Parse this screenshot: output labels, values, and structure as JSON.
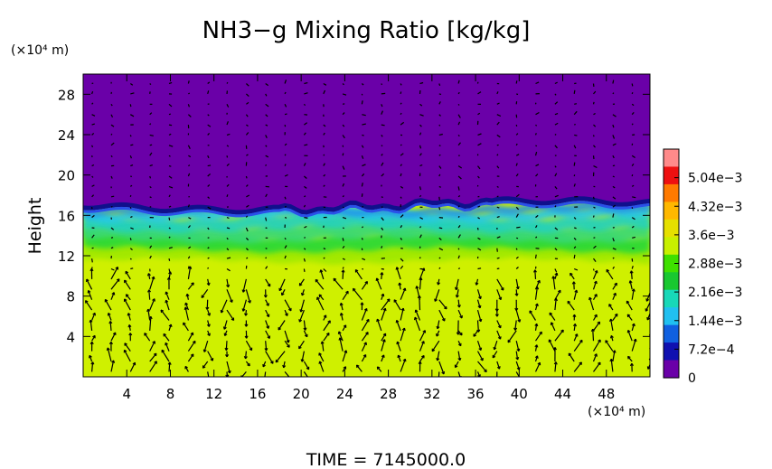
{
  "chart_data": {
    "type": "heatmap",
    "title": "NH3−g Mixing Ratio [kg/kg]",
    "xlabel": "",
    "xunit": "(×10⁴ m)",
    "ylabel": "Height",
    "yunit": "(×10⁴ m)",
    "xlim": [
      0,
      52
    ],
    "ylim": [
      0,
      30
    ],
    "x_ticks": [
      "4",
      "8",
      "12",
      "16",
      "20",
      "24",
      "28",
      "32",
      "36",
      "40",
      "44",
      "48"
    ],
    "x_tick_values": [
      4,
      8,
      12,
      16,
      20,
      24,
      28,
      32,
      36,
      40,
      44,
      48
    ],
    "y_ticks": [
      "4",
      "8",
      "12",
      "16",
      "20",
      "24",
      "28"
    ],
    "y_tick_values": [
      4,
      8,
      12,
      16,
      20,
      24,
      28
    ],
    "colorbar": {
      "labels": [
        "5.04e−3",
        "4.32e−3",
        "3.6e−3",
        "2.88e−3",
        "2.16e−3",
        "1.44e−3",
        "7.2e−4",
        "0"
      ],
      "values": [
        0.00504,
        0.00432,
        0.0036,
        0.00288,
        0.00216,
        0.00144,
        0.00072,
        0
      ],
      "vmax": 0.00576,
      "colors": [
        "#ff8a8a",
        "#ee1010",
        "#ff7a00",
        "#ffb800",
        "#e6e000",
        "#c8f000",
        "#3fe000",
        "#18c830",
        "#18d8b8",
        "#20c0f0",
        "#1060e0",
        "#1010b0",
        "#6a00a8"
      ]
    },
    "fields": {
      "upper_layer": {
        "y_from": 17,
        "y_to": 30,
        "value": 0,
        "color": "#6a00a8"
      },
      "tropopause_edge": {
        "y": 17,
        "color": "#10108c"
      },
      "transition": {
        "y_from": 12,
        "y_to": 17,
        "value_range": [
          0.0018,
          0.0033
        ]
      },
      "lower_layer": {
        "y_from": 0,
        "y_to": 12,
        "value": 0.0036,
        "color": "#cff000"
      }
    },
    "wind_vectors": {
      "shown": true,
      "color": "#000000"
    },
    "footer": "TIME  =  7145000.0"
  }
}
